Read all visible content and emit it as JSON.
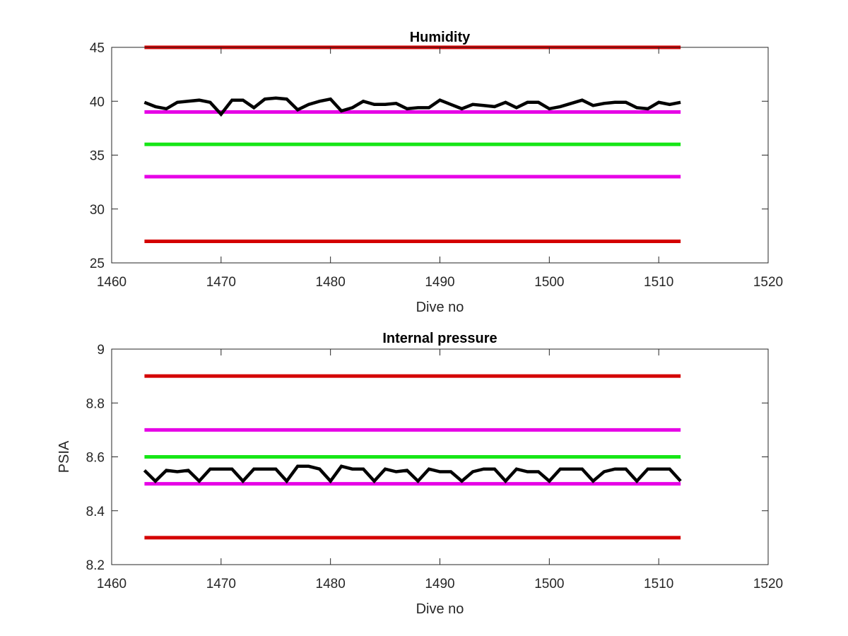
{
  "chart_data": [
    {
      "type": "line",
      "title": "Humidity",
      "xlabel": "Dive no",
      "ylabel": "",
      "xlim": [
        1460,
        1520
      ],
      "ylim": [
        25,
        45
      ],
      "xticks": [
        1460,
        1470,
        1480,
        1490,
        1500,
        1510,
        1520
      ],
      "yticks": [
        25,
        30,
        35,
        40,
        45
      ],
      "grid": false,
      "threshold_lines": [
        {
          "value": 45,
          "color": "#d40000",
          "x_range": [
            1463,
            1512
          ]
        },
        {
          "value": 39,
          "color": "#e600e6",
          "x_range": [
            1463,
            1512
          ]
        },
        {
          "value": 36,
          "color": "#17e617",
          "x_range": [
            1463,
            1512
          ]
        },
        {
          "value": 33,
          "color": "#e600e6",
          "x_range": [
            1463,
            1512
          ]
        },
        {
          "value": 27,
          "color": "#d40000",
          "x_range": [
            1463,
            1512
          ]
        }
      ],
      "series": [
        {
          "color": "#000000",
          "x": [
            1463,
            1464,
            1465,
            1466,
            1467,
            1468,
            1469,
            1470,
            1471,
            1472,
            1473,
            1474,
            1475,
            1476,
            1477,
            1478,
            1479,
            1480,
            1481,
            1482,
            1483,
            1484,
            1485,
            1486,
            1487,
            1488,
            1489,
            1490,
            1491,
            1492,
            1493,
            1494,
            1495,
            1496,
            1497,
            1498,
            1499,
            1500,
            1501,
            1502,
            1503,
            1504,
            1505,
            1506,
            1507,
            1508,
            1509,
            1510,
            1511,
            1512
          ],
          "y": [
            39.9,
            39.5,
            39.3,
            39.9,
            40.0,
            40.1,
            39.9,
            38.8,
            40.1,
            40.1,
            39.4,
            40.2,
            40.3,
            40.2,
            39.2,
            39.7,
            40.0,
            40.2,
            39.1,
            39.4,
            40.0,
            39.7,
            39.7,
            39.8,
            39.3,
            39.4,
            39.4,
            40.1,
            39.7,
            39.3,
            39.7,
            39.6,
            39.5,
            39.9,
            39.4,
            39.9,
            39.9,
            39.3,
            39.5,
            39.8,
            40.1,
            39.6,
            39.8,
            39.9,
            39.9,
            39.4,
            39.3,
            39.9,
            39.7,
            39.9
          ]
        }
      ]
    },
    {
      "type": "line",
      "title": "Internal pressure",
      "xlabel": "Dive no",
      "ylabel": "PSIA",
      "xlim": [
        1460,
        1520
      ],
      "ylim": [
        8.2,
        9
      ],
      "xticks": [
        1460,
        1470,
        1480,
        1490,
        1500,
        1510,
        1520
      ],
      "yticks": [
        8.2,
        8.4,
        8.6,
        8.8,
        9
      ],
      "grid": false,
      "threshold_lines": [
        {
          "value": 8.9,
          "color": "#d40000",
          "x_range": [
            1463,
            1512
          ]
        },
        {
          "value": 8.7,
          "color": "#e600e6",
          "x_range": [
            1463,
            1512
          ]
        },
        {
          "value": 8.6,
          "color": "#17e617",
          "x_range": [
            1463,
            1512
          ]
        },
        {
          "value": 8.5,
          "color": "#e600e6",
          "x_range": [
            1463,
            1512
          ]
        },
        {
          "value": 8.3,
          "color": "#d40000",
          "x_range": [
            1463,
            1512
          ]
        }
      ],
      "series": [
        {
          "color": "#000000",
          "x": [
            1463,
            1464,
            1465,
            1466,
            1467,
            1468,
            1469,
            1470,
            1471,
            1472,
            1473,
            1474,
            1475,
            1476,
            1477,
            1478,
            1479,
            1480,
            1481,
            1482,
            1483,
            1484,
            1485,
            1486,
            1487,
            1488,
            1489,
            1490,
            1491,
            1492,
            1493,
            1494,
            1495,
            1496,
            1497,
            1498,
            1499,
            1500,
            1501,
            1502,
            1503,
            1504,
            1505,
            1506,
            1507,
            1508,
            1509,
            1510,
            1511,
            1512
          ],
          "y": [
            8.55,
            8.51,
            8.55,
            8.545,
            8.55,
            8.51,
            8.555,
            8.555,
            8.555,
            8.51,
            8.555,
            8.555,
            8.555,
            8.51,
            8.565,
            8.565,
            8.555,
            8.51,
            8.565,
            8.555,
            8.555,
            8.51,
            8.555,
            8.545,
            8.55,
            8.51,
            8.555,
            8.545,
            8.545,
            8.51,
            8.545,
            8.555,
            8.555,
            8.51,
            8.555,
            8.545,
            8.545,
            8.51,
            8.555,
            8.555,
            8.555,
            8.51,
            8.545,
            8.555,
            8.555,
            8.51,
            8.555,
            8.555,
            8.555,
            8.51
          ]
        }
      ]
    }
  ]
}
